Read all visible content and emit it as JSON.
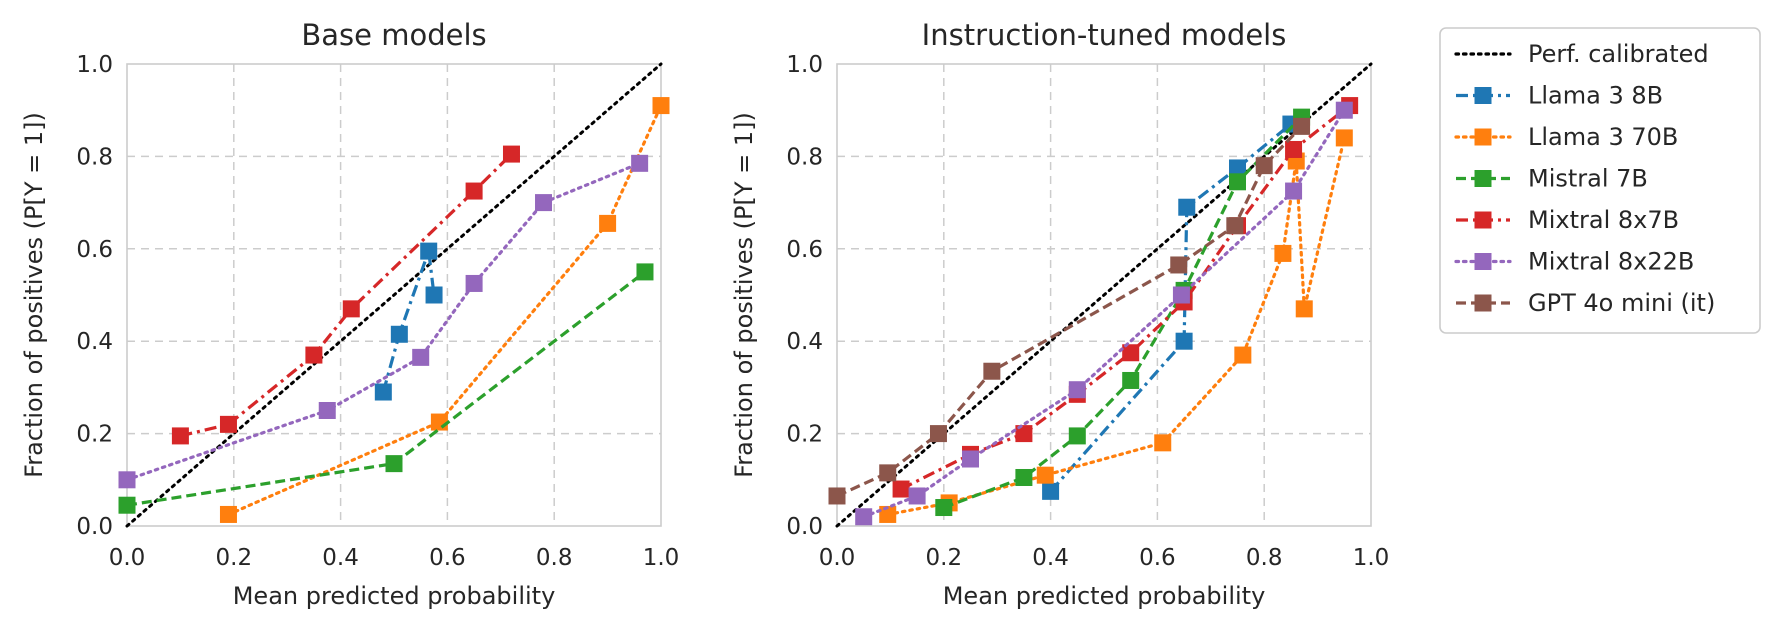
{
  "colors": {
    "perf": "#000000",
    "Llama 3 8B": "#1f77b4",
    "Llama 3 70B": "#ff7f0e",
    "Mistral 7B": "#2ca02c",
    "Mixtral 8x7B": "#d62728",
    "Mixtral 8x22B": "#9467bd",
    "GPT 4o mini (it)": "#8c564b"
  },
  "legend": {
    "placement": "outside-right",
    "entries": [
      {
        "label": "Perf. calibrated",
        "key": "perf",
        "dash": "dotted",
        "marker": false
      },
      {
        "label": "Llama 3 8B",
        "key": "Llama 3 8B",
        "dash": "dashdot",
        "marker": true
      },
      {
        "label": "Llama 3 70B",
        "key": "Llama 3 70B",
        "dash": "dotted",
        "marker": true
      },
      {
        "label": "Mistral 7B",
        "key": "Mistral 7B",
        "dash": "dashed",
        "marker": true
      },
      {
        "label": "Mixtral 8x7B",
        "key": "Mixtral 8x7B",
        "dash": "dashdot",
        "marker": true
      },
      {
        "label": "Mixtral 8x22B",
        "key": "Mixtral 8x22B",
        "dash": "dotted",
        "marker": true
      },
      {
        "label": "GPT 4o mini (it)",
        "key": "GPT 4o mini (it)",
        "dash": "dashed",
        "marker": true
      }
    ]
  },
  "chart_data": [
    {
      "type": "line",
      "title": "Base models",
      "xlabel": "Mean predicted probability",
      "ylabel": "Fraction of positives (P[Y = 1])",
      "xlim": [
        0,
        1
      ],
      "ylim": [
        0,
        1
      ],
      "xticks": [
        "0.0",
        "0.2",
        "0.4",
        "0.6",
        "0.8",
        "1.0"
      ],
      "yticks": [
        "0.0",
        "0.2",
        "0.4",
        "0.6",
        "0.8",
        "1.0"
      ],
      "grid": true,
      "reference_line": {
        "name": "Perf. calibrated",
        "points": [
          [
            0,
            0
          ],
          [
            1,
            1
          ]
        ]
      },
      "series": [
        {
          "name": "Llama 3 8B",
          "dash": "dashdot",
          "points": [
            [
              0.48,
              0.29
            ],
            [
              0.51,
              0.415
            ],
            [
              0.565,
              0.595
            ],
            [
              0.575,
              0.5
            ]
          ]
        },
        {
          "name": "Llama 3 70B",
          "dash": "dotted",
          "points": [
            [
              0.19,
              0.025
            ],
            [
              0.585,
              0.225
            ],
            [
              0.9,
              0.655
            ],
            [
              1.0,
              0.91
            ]
          ]
        },
        {
          "name": "Mistral 7B",
          "dash": "dashed",
          "points": [
            [
              0.0,
              0.045
            ],
            [
              0.5,
              0.135
            ],
            [
              0.97,
              0.55
            ]
          ]
        },
        {
          "name": "Mixtral 8x7B",
          "dash": "dashdot",
          "points": [
            [
              0.1,
              0.195
            ],
            [
              0.19,
              0.22
            ],
            [
              0.35,
              0.37
            ],
            [
              0.42,
              0.47
            ],
            [
              0.65,
              0.725
            ],
            [
              0.72,
              0.805
            ]
          ]
        },
        {
          "name": "Mixtral 8x22B",
          "dash": "dotted",
          "points": [
            [
              0.0,
              0.1
            ],
            [
              0.375,
              0.25
            ],
            [
              0.55,
              0.365
            ],
            [
              0.65,
              0.525
            ],
            [
              0.78,
              0.7
            ],
            [
              0.96,
              0.785
            ]
          ]
        }
      ]
    },
    {
      "type": "line",
      "title": "Instruction-tuned models",
      "xlabel": "Mean predicted probability",
      "ylabel": "Fraction of positives (P[Y = 1])",
      "xlim": [
        0,
        1
      ],
      "ylim": [
        0,
        1
      ],
      "xticks": [
        "0.0",
        "0.2",
        "0.4",
        "0.6",
        "0.8",
        "1.0"
      ],
      "yticks": [
        "0.0",
        "0.2",
        "0.4",
        "0.6",
        "0.8",
        "1.0"
      ],
      "grid": true,
      "reference_line": {
        "name": "Perf. calibrated",
        "points": [
          [
            0,
            0
          ],
          [
            1,
            1
          ]
        ]
      },
      "series": [
        {
          "name": "Llama 3 8B",
          "dash": "dashdot",
          "points": [
            [
              0.4,
              0.075
            ],
            [
              0.65,
              0.4
            ],
            [
              0.655,
              0.69
            ],
            [
              0.75,
              0.775
            ],
            [
              0.85,
              0.87
            ]
          ]
        },
        {
          "name": "Llama 3 70B",
          "dash": "dotted",
          "points": [
            [
              0.095,
              0.025
            ],
            [
              0.21,
              0.05
            ],
            [
              0.39,
              0.11
            ],
            [
              0.61,
              0.18
            ],
            [
              0.76,
              0.37
            ],
            [
              0.835,
              0.59
            ],
            [
              0.86,
              0.79
            ],
            [
              0.875,
              0.47
            ],
            [
              0.95,
              0.84
            ]
          ]
        },
        {
          "name": "Mistral 7B",
          "dash": "dashed",
          "points": [
            [
              0.2,
              0.04
            ],
            [
              0.35,
              0.105
            ],
            [
              0.45,
              0.195
            ],
            [
              0.55,
              0.315
            ],
            [
              0.65,
              0.51
            ],
            [
              0.75,
              0.745
            ],
            [
              0.87,
              0.885
            ]
          ]
        },
        {
          "name": "Mixtral 8x7B",
          "dash": "dashdot",
          "points": [
            [
              0.12,
              0.08
            ],
            [
              0.25,
              0.155
            ],
            [
              0.35,
              0.2
            ],
            [
              0.45,
              0.285
            ],
            [
              0.55,
              0.375
            ],
            [
              0.65,
              0.485
            ],
            [
              0.75,
              0.65
            ],
            [
              0.855,
              0.815
            ],
            [
              0.96,
              0.91
            ]
          ]
        },
        {
          "name": "Mixtral 8x22B",
          "dash": "dotted",
          "points": [
            [
              0.05,
              0.02
            ],
            [
              0.15,
              0.065
            ],
            [
              0.25,
              0.145
            ],
            [
              0.45,
              0.295
            ],
            [
              0.645,
              0.5
            ],
            [
              0.855,
              0.725
            ],
            [
              0.95,
              0.9
            ]
          ]
        },
        {
          "name": "GPT 4o mini (it)",
          "dash": "dashed",
          "points": [
            [
              0.0,
              0.065
            ],
            [
              0.095,
              0.115
            ],
            [
              0.19,
              0.2
            ],
            [
              0.29,
              0.335
            ],
            [
              0.64,
              0.565
            ],
            [
              0.745,
              0.65
            ],
            [
              0.8,
              0.78
            ],
            [
              0.87,
              0.865
            ]
          ]
        }
      ]
    }
  ]
}
